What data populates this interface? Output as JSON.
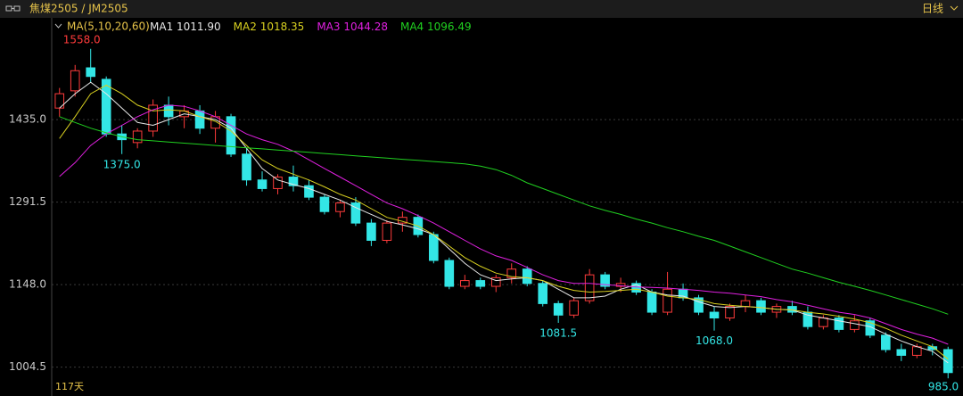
{
  "chart_data": {
    "type": "candlestick",
    "title": "焦煤2505 / JM2505",
    "period": "日线",
    "ma_label": "MA(5,10,20,60)",
    "footer": "117天",
    "ylim": [
      976,
      1584
    ],
    "yticks": [
      {
        "value": 1435,
        "label": "1435.0"
      },
      {
        "value": 1291.5,
        "label": "1291.5"
      },
      {
        "value": 1148,
        "label": "1148.0"
      },
      {
        "value": 1004.5,
        "label": "1004.5"
      }
    ],
    "grid": true,
    "up_color": "#ff3b3b",
    "down_color": "#33e6e6",
    "categories": [
      null,
      null,
      null,
      null,
      null,
      null,
      null,
      null,
      null,
      null,
      null,
      null,
      null,
      null,
      null,
      null,
      null,
      null,
      null,
      null,
      null,
      null,
      null,
      null,
      null,
      null,
      null,
      null,
      null,
      null,
      null,
      null,
      null,
      null,
      null,
      null,
      null,
      null,
      null,
      null,
      null,
      null,
      null,
      null,
      null,
      null,
      null,
      null,
      null,
      null,
      null,
      null,
      null,
      null,
      null,
      null,
      null,
      null
    ],
    "open": [
      1455,
      1485,
      1525,
      1505,
      1410,
      1395,
      1415,
      1460,
      1440,
      1450,
      1420,
      1440,
      1375,
      1330,
      1315,
      1335,
      1320,
      1300,
      1275,
      1290,
      1255,
      1225,
      1255,
      1265,
      1235,
      1190,
      1145,
      1155,
      1145,
      1160,
      1175,
      1150,
      1115,
      1095,
      1120,
      1165,
      1145,
      1150,
      1135,
      1100,
      1140,
      1125,
      1100,
      1090,
      1110,
      1120,
      1100,
      1110,
      1100,
      1075,
      1090,
      1070,
      1085,
      1060,
      1035,
      1025,
      1040,
      1035
    ],
    "high": [
      1490,
      1530,
      1558,
      1510,
      1425,
      1420,
      1470,
      1475,
      1460,
      1460,
      1450,
      1445,
      1385,
      1345,
      1340,
      1355,
      1330,
      1305,
      1295,
      1300,
      1262,
      1260,
      1275,
      1270,
      1240,
      1195,
      1165,
      1160,
      1165,
      1185,
      1180,
      1155,
      1120,
      1125,
      1175,
      1170,
      1160,
      1155,
      1140,
      1170,
      1150,
      1130,
      1110,
      1115,
      1130,
      1125,
      1115,
      1120,
      1110,
      1095,
      1095,
      1095,
      1090,
      1065,
      1045,
      1045,
      1045,
      1040
    ],
    "low": [
      1440,
      1475,
      1500,
      1405,
      1375,
      1385,
      1405,
      1425,
      1420,
      1410,
      1395,
      1370,
      1320,
      1310,
      1305,
      1310,
      1295,
      1270,
      1265,
      1250,
      1215,
      1220,
      1240,
      1230,
      1185,
      1140,
      1140,
      1140,
      1135,
      1150,
      1145,
      1110,
      1081.5,
      1090,
      1115,
      1140,
      1135,
      1130,
      1095,
      1095,
      1120,
      1095,
      1068,
      1085,
      1100,
      1095,
      1090,
      1095,
      1070,
      1070,
      1065,
      1065,
      1055,
      1030,
      1015,
      1020,
      1025,
      985
    ],
    "close": [
      1480,
      1520,
      1510,
      1410,
      1400,
      1415,
      1460,
      1440,
      1450,
      1420,
      1440,
      1375,
      1330,
      1315,
      1335,
      1320,
      1300,
      1275,
      1290,
      1255,
      1225,
      1255,
      1265,
      1235,
      1190,
      1145,
      1155,
      1145,
      1160,
      1175,
      1150,
      1115,
      1095,
      1120,
      1165,
      1145,
      1150,
      1135,
      1100,
      1140,
      1125,
      1100,
      1090,
      1110,
      1120,
      1100,
      1110,
      1100,
      1075,
      1090,
      1070,
      1085,
      1060,
      1035,
      1025,
      1040,
      1035,
      995
    ],
    "high_labels": [
      null,
      null,
      "1558.0",
      null,
      null,
      null,
      null,
      null,
      null,
      null,
      null,
      null,
      null,
      null,
      null,
      null,
      null,
      null,
      null,
      null,
      null,
      null,
      null,
      null,
      null,
      null,
      null,
      null,
      null,
      null,
      null,
      null,
      null,
      null,
      null,
      null,
      null,
      null,
      null,
      null,
      null,
      null,
      null,
      null,
      null,
      null,
      null,
      null,
      null,
      null,
      null,
      null,
      null,
      null,
      null,
      null,
      null,
      null
    ],
    "low_labels": [
      null,
      null,
      null,
      null,
      "1375.0",
      null,
      null,
      null,
      null,
      null,
      null,
      null,
      null,
      null,
      null,
      null,
      null,
      null,
      null,
      null,
      null,
      null,
      null,
      null,
      null,
      null,
      null,
      null,
      null,
      null,
      null,
      null,
      "1081.5",
      null,
      null,
      null,
      null,
      null,
      null,
      null,
      null,
      null,
      "1068.0",
      null,
      null,
      null,
      null,
      null,
      null,
      null,
      null,
      null,
      null,
      null,
      null,
      null,
      null,
      "985.0"
    ],
    "series": [
      {
        "name": "MA1",
        "legend_value": "1011.90",
        "color": "#e8e8e8",
        "values": [
          1455,
          1480,
          1500,
          1480,
          1455,
          1430,
          1425,
          1435,
          1445,
          1440,
          1435,
          1420,
          1385,
          1350,
          1330,
          1322,
          1315,
          1305,
          1295,
          1282,
          1270,
          1258,
          1252,
          1245,
          1235,
          1210,
          1185,
          1165,
          1155,
          1158,
          1160,
          1155,
          1140,
          1125,
          1125,
          1128,
          1140,
          1148,
          1135,
          1130,
          1128,
          1118,
          1110,
          1108,
          1110,
          1108,
          1105,
          1104,
          1095,
          1090,
          1085,
          1080,
          1075,
          1062,
          1050,
          1040,
          1032,
          1011.9
        ]
      },
      {
        "name": "MA2",
        "legend_value": "1018.35",
        "color": "#d8d020",
        "values": [
          1402,
          1440,
          1480,
          1495,
          1480,
          1460,
          1450,
          1452,
          1450,
          1440,
          1432,
          1415,
          1390,
          1365,
          1350,
          1340,
          1330,
          1318,
          1305,
          1295,
          1280,
          1265,
          1258,
          1250,
          1235,
          1215,
          1195,
          1180,
          1168,
          1162,
          1160,
          1155,
          1145,
          1138,
          1135,
          1136,
          1138,
          1140,
          1135,
          1128,
          1125,
          1122,
          1115,
          1112,
          1110,
          1108,
          1105,
          1104,
          1100,
          1097,
          1093,
          1088,
          1082,
          1072,
          1060,
          1050,
          1040,
          1018.35
        ]
      },
      {
        "name": "MA3",
        "legend_value": "1044.28",
        "color": "#e020e0",
        "values": [
          1336,
          1360,
          1390,
          1410,
          1425,
          1440,
          1452,
          1460,
          1458,
          1450,
          1440,
          1425,
          1410,
          1400,
          1392,
          1380,
          1365,
          1350,
          1335,
          1320,
          1305,
          1290,
          1280,
          1268,
          1255,
          1240,
          1225,
          1210,
          1198,
          1190,
          1178,
          1165,
          1155,
          1150,
          1150,
          1148,
          1146,
          1144,
          1143,
          1142,
          1140,
          1138,
          1135,
          1133,
          1130,
          1127,
          1122,
          1118,
          1112,
          1106,
          1100,
          1096,
          1090,
          1080,
          1070,
          1062,
          1055,
          1044.28
        ]
      },
      {
        "name": "MA4",
        "legend_value": "1096.49",
        "color": "#20d020",
        "values": [
          1440,
          1430,
          1420,
          1412,
          1405,
          1400,
          1398,
          1396,
          1394,
          1392,
          1390,
          1388,
          1386,
          1384,
          1382,
          1380,
          1378,
          1376,
          1374,
          1372,
          1370,
          1368,
          1366,
          1364,
          1362,
          1360,
          1358,
          1354,
          1348,
          1338,
          1325,
          1315,
          1305,
          1295,
          1285,
          1277,
          1270,
          1262,
          1255,
          1247,
          1240,
          1232,
          1225,
          1215,
          1205,
          1195,
          1185,
          1175,
          1168,
          1160,
          1152,
          1145,
          1138,
          1130,
          1122,
          1114,
          1106,
          1096.49
        ]
      }
    ]
  }
}
